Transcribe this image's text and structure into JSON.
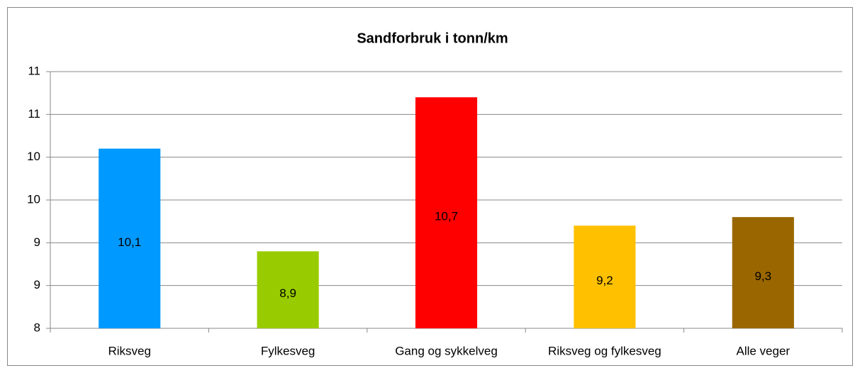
{
  "chart_data": {
    "type": "bar",
    "title": "Sandforbruk i tonn/km",
    "categories": [
      "Riksveg",
      "Fylkesveg",
      "Gang og sykkelveg",
      "Riksveg og fylkesveg",
      "Alle veger"
    ],
    "values": [
      10.1,
      8.9,
      10.7,
      9.2,
      9.3
    ],
    "value_labels": [
      "10,1",
      "8,9",
      "10,7",
      "9,2",
      "9,3"
    ],
    "colors": [
      "#0099ff",
      "#99cc00",
      "#ff0000",
      "#ffc000",
      "#996600"
    ],
    "ylim": [
      8,
      11
    ],
    "yticks": [
      8,
      {
        "value": 8.5,
        "label": "9"
      },
      9,
      {
        "value": 9.5,
        "label": "10"
      },
      10,
      {
        "value": 10.5,
        "label": "11"
      },
      11
    ],
    "grid": true
  }
}
